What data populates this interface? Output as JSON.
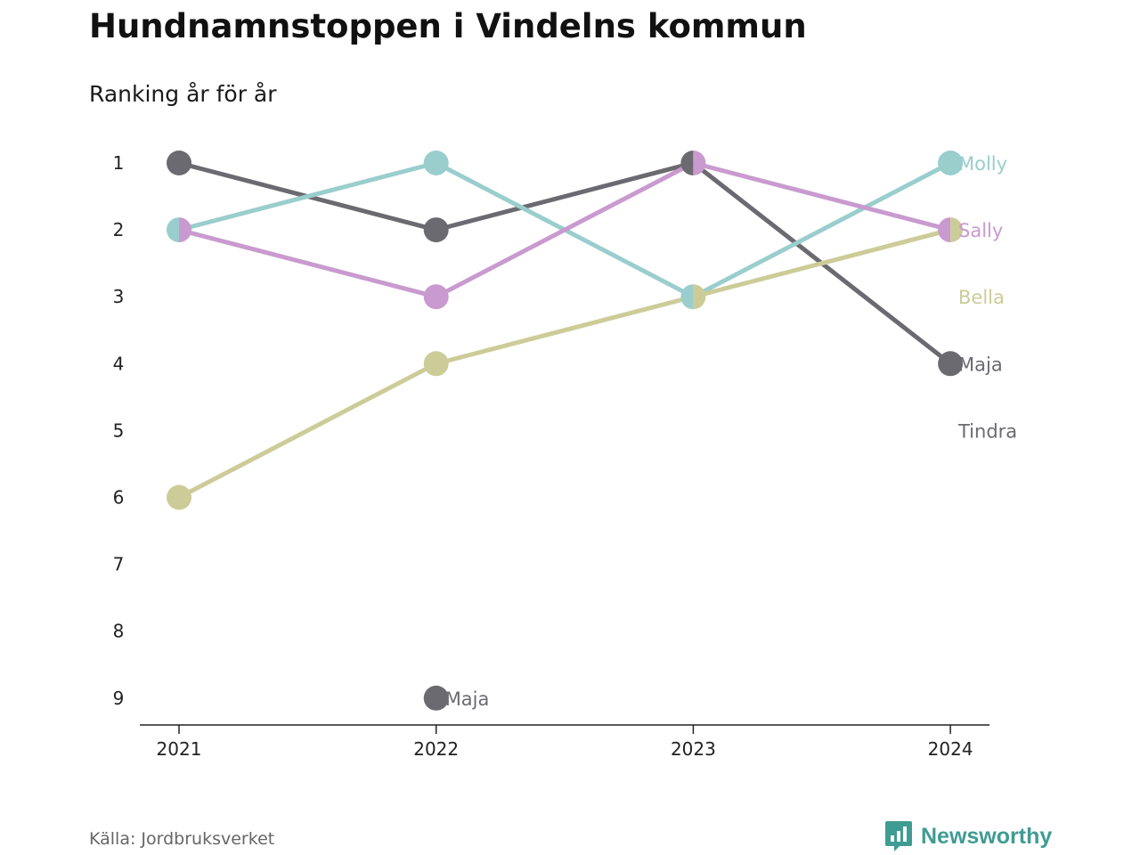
{
  "title": "Hundnamnstoppen i Vindelns kommun",
  "subtitle": "Ranking år för år",
  "source": "Källa: Jordbruksverket",
  "brand": {
    "name": "Newsworthy",
    "icon": "newsworthy-logo-icon",
    "color": "#3f9c93"
  },
  "chart_data": {
    "type": "line",
    "title": "Hundnamnstoppen i Vindelns kommun",
    "subtitle": "Ranking år för år",
    "x": [
      "2021",
      "2022",
      "2023",
      "2024"
    ],
    "y_ticks": [
      "1",
      "2",
      "3",
      "4",
      "5",
      "6",
      "7",
      "8",
      "9"
    ],
    "ylim": [
      1,
      9
    ],
    "y_inverted": true,
    "grid": false,
    "series": [
      {
        "name": "Maja",
        "color": "#6b6a70",
        "values": [
          1,
          2,
          1,
          4
        ]
      },
      {
        "name": "Molly",
        "color": "#99cecd",
        "values": [
          2,
          1,
          3,
          1
        ]
      },
      {
        "name": "Sally",
        "color": "#c99acf",
        "values": [
          2,
          3,
          1,
          2
        ]
      },
      {
        "name": "Bella",
        "color": "#cccc99",
        "values": [
          6,
          4,
          3,
          2
        ]
      }
    ],
    "end_labels": [
      {
        "text": "Molly",
        "rank": 1,
        "color": "#99cecd"
      },
      {
        "text": "Sally",
        "rank": 2,
        "color": "#c99acf"
      },
      {
        "text": "Bella",
        "rank": 3,
        "color": "#cccc99"
      },
      {
        "text": "Maja",
        "rank": 4,
        "color": "#6b6a70"
      },
      {
        "text": "Tindra",
        "rank": 5,
        "color": "#6b6a70"
      }
    ],
    "annotations": [
      {
        "text": "Maja",
        "x": "2022",
        "rank": 9,
        "color": "#6b6a70"
      }
    ]
  }
}
